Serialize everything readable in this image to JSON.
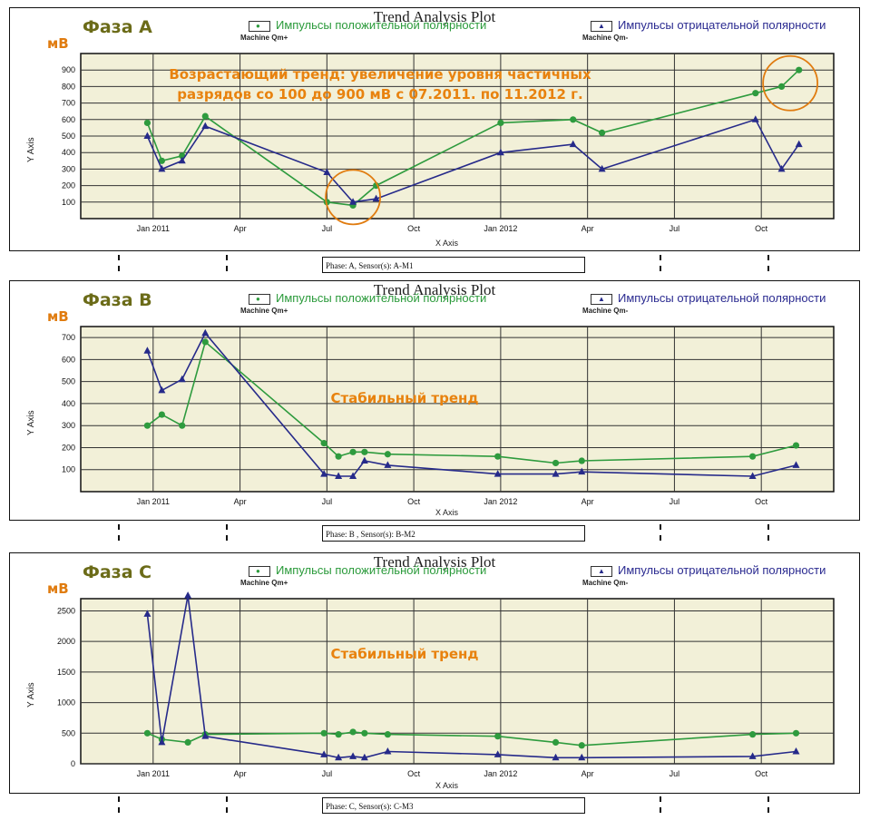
{
  "chart_data": [
    {
      "type": "line",
      "title": "Trend Analysis Plot",
      "phase_label": "Фаза А",
      "unit": "мВ",
      "xlabel": "X Axis",
      "ylabel": "Y Axis",
      "caption": "Phase: A,  Sensor(s): A-M1",
      "annotation": "Возрастающий тренд: увеличение уровня частичных разрядов со 100 до 900 мВ с 07.2011. по 11.2012 г.",
      "ylim": [
        0,
        1000
      ],
      "yticks": [
        100,
        200,
        300,
        400,
        500,
        600,
        700,
        800,
        900
      ],
      "x_ticks": [
        "Jan 2011",
        "Apr",
        "Jul",
        "Oct",
        "Jan 2012",
        "Apr",
        "Jul",
        "Oct"
      ],
      "legend": {
        "pos_label": "Импульсы положительной полярности",
        "pos_sub": "Machine Qm+",
        "neg_label": "Импульсы отрицательной полярности",
        "neg_sub": "Machine Qm-"
      },
      "series": [
        {
          "name": "Machine Qm+",
          "color": "#2e9b3e",
          "x": [
            -0.2,
            0.3,
            1.0,
            1.8,
            6.0,
            6.9,
            7.7,
            12.0,
            14.5,
            15.5,
            20.8,
            21.7,
            22.3
          ],
          "y": [
            580,
            350,
            380,
            620,
            100,
            80,
            200,
            580,
            600,
            520,
            760,
            800,
            900
          ]
        },
        {
          "name": "Machine Qm-",
          "color": "#262a8a",
          "x": [
            -0.2,
            0.3,
            1.0,
            1.8,
            6.0,
            6.9,
            7.7,
            12.0,
            14.5,
            15.5,
            20.8,
            21.7,
            22.3
          ],
          "y": [
            500,
            300,
            350,
            560,
            280,
            100,
            120,
            400,
            450,
            300,
            600,
            300,
            450
          ]
        }
      ]
    },
    {
      "type": "line",
      "title": "Trend Analysis Plot",
      "phase_label": "Фаза В",
      "unit": "мВ",
      "xlabel": "X Axis",
      "ylabel": "Y Axis",
      "caption": "Phase: B  , Sensor(s): B-M2",
      "annotation": "Стабильный тренд",
      "ylim": [
        0,
        750
      ],
      "yticks": [
        100,
        200,
        300,
        400,
        500,
        600,
        700
      ],
      "x_ticks": [
        "Jan 2011",
        "Apr",
        "Jul",
        "Oct",
        "Jan 2012",
        "Apr",
        "Jul",
        "Oct"
      ],
      "legend": {
        "pos_label": "Импульсы положительной полярности",
        "pos_sub": "Machine Qm+",
        "neg_label": "Импульсы отрицательной полярности",
        "neg_sub": "Machine Qm-"
      },
      "series": [
        {
          "name": "Machine Qm+",
          "color": "#2e9b3e",
          "x": [
            -0.2,
            0.3,
            1.0,
            1.8,
            5.9,
            6.4,
            6.9,
            7.3,
            8.1,
            11.9,
            13.9,
            14.8,
            20.7,
            22.2
          ],
          "y": [
            300,
            350,
            300,
            680,
            220,
            160,
            180,
            180,
            170,
            160,
            130,
            140,
            160,
            210
          ]
        },
        {
          "name": "Machine Qm-",
          "color": "#262a8a",
          "x": [
            -0.2,
            0.3,
            1.0,
            1.8,
            5.9,
            6.4,
            6.9,
            7.3,
            8.1,
            11.9,
            13.9,
            14.8,
            20.7,
            22.2
          ],
          "y": [
            640,
            460,
            510,
            720,
            80,
            70,
            70,
            140,
            120,
            80,
            80,
            90,
            70,
            120
          ]
        }
      ]
    },
    {
      "type": "line",
      "title": "Trend Analysis Plot",
      "phase_label": "Фаза С",
      "unit": "мВ",
      "xlabel": "X Axis",
      "ylabel": "Y Axis",
      "caption": "Phase: C,  Sensor(s): C-M3",
      "annotation": "Стабильный тренд",
      "ylim": [
        0,
        2700
      ],
      "yticks": [
        0,
        500,
        1000,
        1500,
        2000,
        2500
      ],
      "x_ticks": [
        "Jan 2011",
        "Apr",
        "Jul",
        "Oct",
        "Jan 2012",
        "Apr",
        "Jul",
        "Oct"
      ],
      "legend": {
        "pos_label": "Импульсы положительной полярности",
        "pos_sub": "Machine Qm+",
        "neg_label": "Импульсы отрицательной полярности",
        "neg_sub": "Machine Qm-"
      },
      "series": [
        {
          "name": "Machine Qm+",
          "color": "#2e9b3e",
          "x": [
            -0.2,
            0.3,
            1.2,
            1.8,
            5.9,
            6.4,
            6.9,
            7.3,
            8.1,
            11.9,
            13.9,
            14.8,
            20.7,
            22.2
          ],
          "y": [
            500,
            400,
            350,
            480,
            500,
            480,
            520,
            500,
            480,
            450,
            350,
            300,
            480,
            500
          ]
        },
        {
          "name": "Machine Qm-",
          "color": "#262a8a",
          "x": [
            -0.2,
            0.3,
            1.2,
            1.8,
            5.9,
            6.4,
            6.9,
            7.3,
            8.1,
            11.9,
            13.9,
            14.8,
            20.7,
            22.2
          ],
          "y": [
            2450,
            350,
            2750,
            450,
            150,
            100,
            120,
            100,
            200,
            150,
            100,
            100,
            120,
            200
          ]
        }
      ]
    }
  ]
}
